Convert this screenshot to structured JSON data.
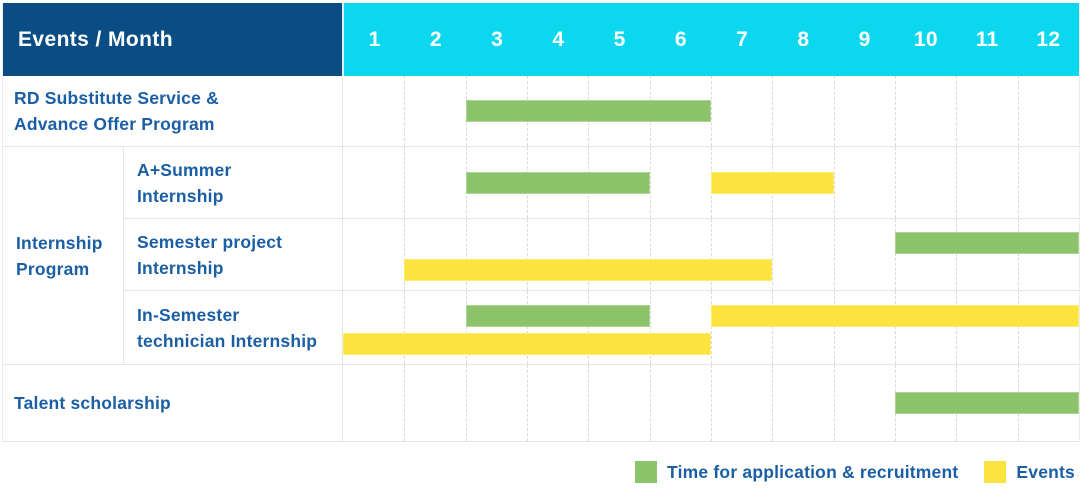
{
  "header": {
    "title": "Events / Month"
  },
  "legend": {
    "recruitment_label": "Time for application & recruitment",
    "events_label": "Events"
  },
  "colors": {
    "header_bg": "#0a4d84",
    "month_header_bg": "#0bd8ee",
    "recruitment": "#8bc46a",
    "events": "#fde33e",
    "label_text": "#1a5fa4"
  },
  "chart_data": {
    "type": "bar",
    "variant": "gantt-timeline",
    "title": "Events / Month",
    "months": [
      "1",
      "2",
      "3",
      "4",
      "5",
      "6",
      "7",
      "8",
      "9",
      "10",
      "11",
      "12"
    ],
    "x_range": [
      1,
      12
    ],
    "grid": "vertical dashed lines at each month boundary",
    "legend_position": "bottom-right",
    "series_legend": [
      {
        "name": "Time for application & recruitment",
        "kind": "recruitment",
        "color": "#8bc46a"
      },
      {
        "name": "Events",
        "kind": "events",
        "color": "#fde33e"
      }
    ],
    "group_label": "Internship Program",
    "rows": [
      {
        "label": "RD Substitute Service &\nAdvance Offer Program",
        "group": "",
        "bars": [
          {
            "kind": "recruitment",
            "start_month": 3,
            "end_month": 6,
            "lane": "single"
          }
        ]
      },
      {
        "label": "A+Summer\nInternship",
        "group": "Internship Program",
        "bars": [
          {
            "kind": "recruitment",
            "start_month": 3,
            "end_month": 5,
            "lane": "single"
          },
          {
            "kind": "events",
            "start_month": 7,
            "end_month": 8,
            "lane": "single"
          }
        ]
      },
      {
        "label": "Semester project\nInternship",
        "group": "Internship Program",
        "bars": [
          {
            "kind": "recruitment",
            "start_month": 10,
            "end_month": 12,
            "lane": "top"
          },
          {
            "kind": "events",
            "start_month": 2,
            "end_month": 7,
            "lane": "bottom"
          }
        ]
      },
      {
        "label": "In-Semester\ntechnician Internship",
        "group": "Internship Program",
        "bars": [
          {
            "kind": "recruitment",
            "start_month": 3,
            "end_month": 5,
            "lane": "top"
          },
          {
            "kind": "events",
            "start_month": 7,
            "end_month": 12,
            "lane": "top"
          },
          {
            "kind": "events",
            "start_month": 1,
            "end_month": 6,
            "lane": "bottom"
          }
        ]
      },
      {
        "label": "Talent scholarship",
        "group": "",
        "bars": [
          {
            "kind": "recruitment",
            "start_month": 10,
            "end_month": 12,
            "lane": "single"
          }
        ]
      }
    ]
  }
}
